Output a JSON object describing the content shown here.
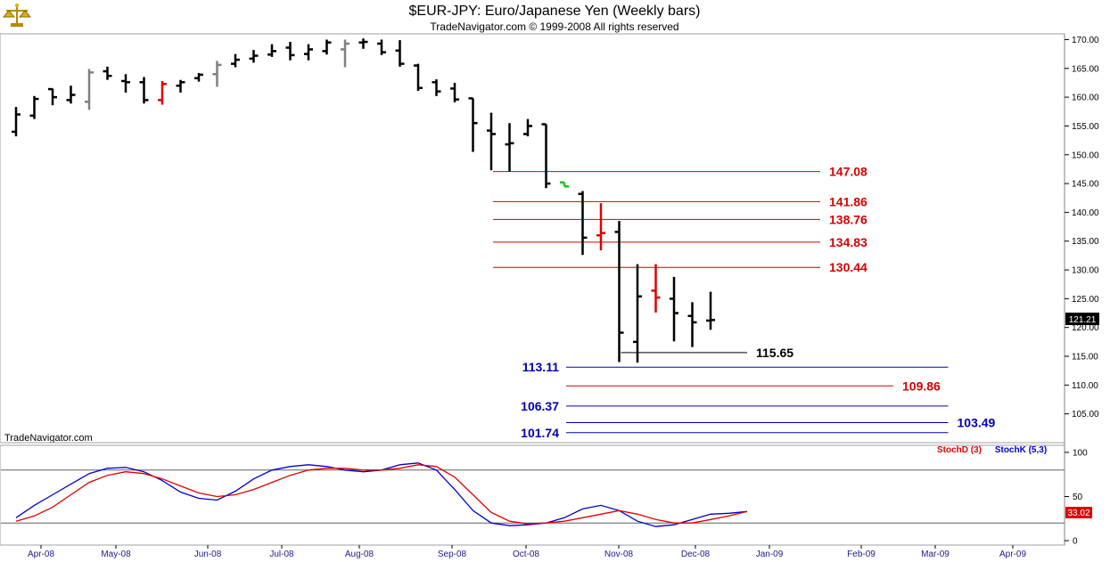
{
  "title": "$EUR-JPY:  Euro/Japanese Yen  (Weekly bars)",
  "subtitle": "TradeNavigator.com © 1999-2008 All rights reserved",
  "watermark": "TradeNavigator.com",
  "last_price_label": "121.21",
  "stoch_value_label": "33.02",
  "logo_icon": "scales-logo-icon",
  "colors": {
    "bar_default": "#000000",
    "bar_gray": "#808080",
    "bar_red": "#e00000",
    "bar_green": "#00cc00",
    "level_red": "#d40000",
    "level_blue": "#0000b0",
    "stoch_d": "#e00000",
    "stoch_k": "#0000d0"
  },
  "chart_data": [
    {
      "type": "ohlc",
      "title": "$EUR-JPY:  Euro/Japanese Yen  (Weekly bars)",
      "ylim": [
        100,
        171
      ],
      "y_ticks": [
        105,
        110,
        115,
        120,
        125,
        130,
        135,
        140,
        145,
        150,
        155,
        160,
        165,
        170
      ],
      "y_tick_labels": [
        "105.00",
        "110.00",
        "115.00",
        "120.00",
        "125.00",
        "130.00",
        "135.00",
        "140.00",
        "145.00",
        "150.00",
        "155.00",
        "160.00",
        "165.00",
        "170.00"
      ],
      "x_labels": [
        "Apr-08",
        "May-08",
        "Jun-08",
        "Jul-08",
        "Aug-08",
        "Sep-08",
        "Oct-08",
        "Nov-08",
        "Dec-08",
        "Jan-09",
        "Feb-09",
        "Mar-09",
        "Apr-09"
      ],
      "bars": [
        {
          "o": 154.0,
          "h": 158.3,
          "l": 153.2,
          "c": 157.0,
          "color": "black"
        },
        {
          "o": 156.8,
          "h": 160.2,
          "l": 156.2,
          "c": 159.7,
          "color": "black"
        },
        {
          "o": 161.4,
          "h": 161.5,
          "l": 158.6,
          "c": 160.0,
          "color": "black"
        },
        {
          "o": 159.5,
          "h": 162.0,
          "l": 158.9,
          "c": 160.4,
          "color": "black"
        },
        {
          "o": 159.2,
          "h": 164.9,
          "l": 157.8,
          "c": 164.3,
          "color": "gray"
        },
        {
          "o": 164.5,
          "h": 165.3,
          "l": 163.0,
          "c": 163.7,
          "color": "black"
        },
        {
          "o": 162.8,
          "h": 164.0,
          "l": 160.8,
          "c": 162.6,
          "color": "black"
        },
        {
          "o": 162.6,
          "h": 163.5,
          "l": 158.9,
          "c": 159.5,
          "color": "black"
        },
        {
          "o": 159.5,
          "h": 162.8,
          "l": 158.7,
          "c": 162.3,
          "color": "red"
        },
        {
          "o": 162.0,
          "h": 163.0,
          "l": 160.8,
          "c": 162.6,
          "color": "black"
        },
        {
          "o": 163.3,
          "h": 164.2,
          "l": 162.7,
          "c": 163.9,
          "color": "black"
        },
        {
          "o": 164.0,
          "h": 166.3,
          "l": 161.8,
          "c": 165.6,
          "color": "gray"
        },
        {
          "o": 165.8,
          "h": 167.5,
          "l": 165.2,
          "c": 166.5,
          "color": "black"
        },
        {
          "o": 166.7,
          "h": 168.2,
          "l": 166.0,
          "c": 167.2,
          "color": "black"
        },
        {
          "o": 167.4,
          "h": 169.2,
          "l": 167.0,
          "c": 168.0,
          "color": "black"
        },
        {
          "o": 168.6,
          "h": 169.6,
          "l": 166.4,
          "c": 167.3,
          "color": "black"
        },
        {
          "o": 167.5,
          "h": 169.2,
          "l": 166.4,
          "c": 168.3,
          "color": "black"
        },
        {
          "o": 168.0,
          "h": 170.0,
          "l": 167.4,
          "c": 169.5,
          "color": "black"
        },
        {
          "o": 168.3,
          "h": 170.0,
          "l": 165.2,
          "c": 169.3,
          "color": "gray"
        },
        {
          "o": 169.5,
          "h": 170.2,
          "l": 168.4,
          "c": 169.6,
          "color": "black"
        },
        {
          "o": 169.3,
          "h": 170.0,
          "l": 167.3,
          "c": 167.8,
          "color": "black"
        },
        {
          "o": 168.1,
          "h": 169.9,
          "l": 165.3,
          "c": 165.8,
          "color": "black"
        },
        {
          "o": 165.5,
          "h": 165.8,
          "l": 161.1,
          "c": 161.6,
          "color": "black"
        },
        {
          "o": 162.6,
          "h": 163.1,
          "l": 160.2,
          "c": 161.0,
          "color": "black"
        },
        {
          "o": 161.5,
          "h": 162.5,
          "l": 159.1,
          "c": 159.6,
          "color": "black"
        },
        {
          "o": 159.8,
          "h": 159.8,
          "l": 150.5,
          "c": 155.5,
          "color": "black"
        },
        {
          "o": 154.2,
          "h": 157.3,
          "l": 147.3,
          "c": 153.6,
          "color": "black"
        },
        {
          "o": 151.8,
          "h": 155.5,
          "l": 147.1,
          "c": 152.0,
          "color": "black"
        },
        {
          "o": 153.6,
          "h": 156.2,
          "l": 153.2,
          "c": 155.0,
          "color": "black"
        },
        {
          "o": 155.3,
          "h": 155.3,
          "l": 144.2,
          "c": 145.0,
          "color": "black"
        },
        {
          "o": 145.2,
          "h": 145.2,
          "l": 144.5,
          "c": 144.5,
          "color": "green"
        },
        {
          "o": 143.2,
          "h": 143.7,
          "l": 132.6,
          "c": 135.6,
          "color": "black"
        },
        {
          "o": 136.0,
          "h": 141.6,
          "l": 133.4,
          "c": 136.4,
          "color": "red"
        },
        {
          "o": 136.6,
          "h": 138.5,
          "l": 114.0,
          "c": 119.1,
          "color": "black"
        },
        {
          "o": 117.5,
          "h": 131.0,
          "l": 113.9,
          "c": 125.4,
          "color": "black"
        },
        {
          "o": 126.4,
          "h": 131.0,
          "l": 122.6,
          "c": 125.2,
          "color": "red"
        },
        {
          "o": 125.0,
          "h": 128.8,
          "l": 117.6,
          "c": 122.5,
          "color": "black"
        },
        {
          "o": 122.0,
          "h": 124.4,
          "l": 116.6,
          "c": 120.9,
          "color": "black"
        },
        {
          "o": 121.2,
          "h": 126.2,
          "l": 119.6,
          "c": 121.3,
          "color": "black"
        }
      ],
      "levels": [
        {
          "value": 147.08,
          "label": "147.08",
          "color": "red",
          "from_bar": 26,
          "to_bar": 44,
          "label_side": "right"
        },
        {
          "value": 141.86,
          "label": "141.86",
          "color": "red",
          "from_bar": 26,
          "to_bar": 44,
          "label_side": "right"
        },
        {
          "value": 138.76,
          "label": "138.76",
          "color": "red",
          "from_bar": 26,
          "to_bar": 44,
          "label_side": "right"
        },
        {
          "value": 134.83,
          "label": "134.83",
          "color": "red",
          "from_bar": 26,
          "to_bar": 44,
          "label_side": "right"
        },
        {
          "value": 130.44,
          "label": "130.44",
          "color": "red",
          "from_bar": 26,
          "to_bar": 44,
          "label_side": "right"
        },
        {
          "value": 115.65,
          "label": "115.65",
          "color": "black",
          "from_bar": 33,
          "to_bar": 40,
          "label_side": "right"
        },
        {
          "value": 113.11,
          "label": "113.11",
          "color": "blue",
          "from_bar": 30,
          "to_bar": 51,
          "label_side": "left"
        },
        {
          "value": 109.86,
          "label": "109.86",
          "color": "red",
          "from_bar": 30,
          "to_bar": 48,
          "label_side": "right"
        },
        {
          "value": 106.37,
          "label": "106.37",
          "color": "blue",
          "from_bar": 30,
          "to_bar": 51,
          "label_side": "left"
        },
        {
          "value": 103.49,
          "label": "103.49",
          "color": "blue",
          "from_bar": 30,
          "to_bar": 51,
          "label_side": "right"
        },
        {
          "value": 101.74,
          "label": "101.74",
          "color": "blue",
          "from_bar": 30,
          "to_bar": 51,
          "label_side": "left"
        }
      ],
      "last_price": 121.21
    },
    {
      "type": "line",
      "indicator": "stochastic",
      "ylim": [
        -5,
        108
      ],
      "y_ticks": [
        0,
        50,
        100
      ],
      "y_tick_labels": [
        "0",
        "50",
        "100"
      ],
      "reference_lines": [
        20,
        80
      ],
      "series": [
        {
          "name": "StochK (5,3)",
          "color": "blue",
          "values": [
            26,
            40,
            52,
            64,
            76,
            82,
            83,
            78,
            68,
            55,
            48,
            46,
            56,
            70,
            80,
            84,
            86,
            84,
            80,
            78,
            80,
            86,
            88,
            80,
            58,
            34,
            20,
            17,
            18,
            20,
            26,
            36,
            40,
            34,
            22,
            16,
            18,
            24,
            30,
            31,
            33
          ]
        },
        {
          "name": "StochD (3)",
          "color": "red",
          "values": [
            22,
            28,
            38,
            52,
            66,
            74,
            78,
            76,
            70,
            62,
            54,
            50,
            52,
            58,
            66,
            74,
            80,
            82,
            82,
            80,
            80,
            82,
            86,
            84,
            72,
            52,
            32,
            22,
            19,
            20,
            22,
            26,
            30,
            34,
            30,
            24,
            20,
            20,
            24,
            28,
            33
          ]
        }
      ],
      "last_value": 33.02,
      "legend": "top-right"
    }
  ]
}
